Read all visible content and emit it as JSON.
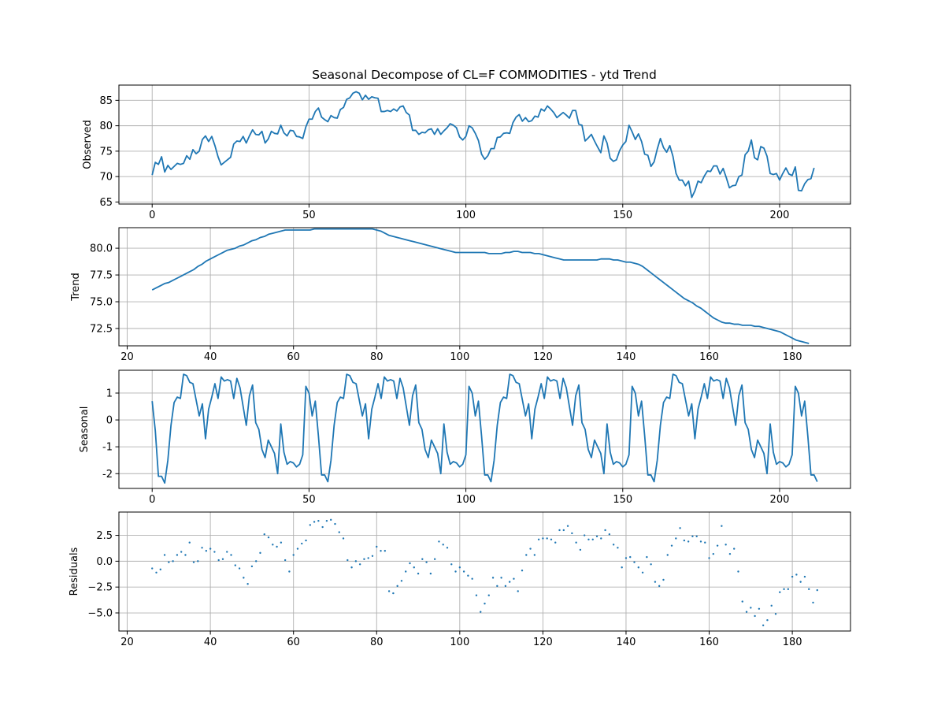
{
  "title": "Seasonal Decompose of CL=F COMMODITIES - ytd Trend",
  "colors": {
    "series": "#1f77b4",
    "grid": "#b0b0b0",
    "axes": "#000000",
    "background": "#ffffff"
  },
  "chart_data": [
    {
      "type": "line",
      "ylabel": "Observed",
      "grid": true,
      "xlim": [
        -10.6,
        222.6
      ],
      "ylim": [
        64.6,
        88.0
      ],
      "xticks": [
        0,
        50,
        100,
        150,
        200
      ],
      "yticks": [
        65,
        70,
        75,
        80,
        85
      ],
      "x_start": 0,
      "values": [
        70.3,
        72.8,
        72.4,
        73.9,
        70.9,
        72.2,
        71.4,
        72.0,
        72.6,
        72.4,
        72.6,
        74.1,
        73.4,
        75.3,
        74.5,
        75.0,
        77.3,
        78.0,
        76.9,
        77.9,
        76.1,
        73.9,
        72.3,
        72.8,
        73.3,
        73.8,
        76.4,
        77.0,
        76.9,
        77.9,
        76.6,
        78.0,
        79.2,
        78.3,
        78.2,
        78.9,
        76.6,
        77.4,
        78.9,
        78.5,
        78.4,
        80.1,
        78.6,
        78.0,
        79.1,
        79.0,
        77.9,
        77.8,
        77.5,
        79.8,
        81.3,
        81.3,
        82.8,
        83.5,
        81.7,
        81.2,
        80.8,
        82.0,
        81.6,
        81.5,
        83.2,
        83.6,
        85.2,
        85.5,
        86.4,
        86.7,
        86.4,
        85.1,
        86.0,
        85.2,
        85.7,
        85.5,
        85.4,
        82.8,
        82.8,
        83.0,
        82.8,
        83.3,
        82.9,
        83.7,
        83.9,
        82.6,
        82.1,
        79.1,
        79.1,
        78.3,
        78.7,
        78.6,
        79.2,
        79.4,
        78.3,
        79.4,
        78.3,
        79.0,
        79.6,
        80.4,
        80.1,
        79.6,
        77.8,
        77.2,
        77.9,
        80.0,
        79.6,
        78.5,
        77.1,
        74.4,
        73.4,
        74.1,
        75.5,
        75.5,
        77.7,
        77.8,
        78.5,
        78.6,
        78.5,
        80.6,
        81.7,
        82.2,
        80.9,
        81.6,
        80.8,
        81.0,
        81.9,
        81.7,
        83.3,
        82.9,
        83.9,
        83.3,
        82.6,
        81.6,
        82.1,
        82.6,
        82.1,
        81.5,
        83.0,
        83.0,
        80.3,
        80.1,
        77.0,
        77.6,
        78.3,
        77.0,
        75.8,
        74.7,
        78.0,
        76.6,
        73.6,
        73.0,
        73.3,
        75.1,
        76.2,
        76.9,
        80.1,
        78.8,
        77.3,
        78.4,
        76.9,
        74.4,
        74.2,
        72.0,
        72.9,
        75.4,
        77.5,
        75.7,
        74.8,
        76.1,
        74.0,
        70.6,
        69.3,
        69.3,
        68.2,
        69.1,
        65.9,
        67.2,
        69.1,
        68.8,
        70.1,
        71.1,
        71.0,
        72.1,
        72.1,
        70.5,
        71.6,
        69.8,
        67.8,
        68.2,
        68.3,
        70.0,
        70.3,
        74.3,
        75.0,
        77.2,
        73.7,
        73.3,
        75.9,
        75.6,
        74.0,
        70.6,
        70.4,
        70.6,
        69.3,
        70.6,
        71.7,
        70.5,
        70.2,
        71.9,
        67.3,
        67.2,
        68.6,
        69.4,
        69.6,
        71.7
      ]
    },
    {
      "type": "line",
      "ylabel": "Trend",
      "grid": true,
      "xlim": [
        18.0,
        194.0
      ],
      "ylim": [
        70.88,
        81.92
      ],
      "xticks": [
        20,
        40,
        60,
        80,
        100,
        120,
        140,
        160,
        180
      ],
      "yticks": [
        72.5,
        75.0,
        77.5,
        80.0
      ],
      "x_start": 26,
      "values": [
        76.1,
        76.3,
        76.5,
        76.7,
        76.8,
        77.0,
        77.2,
        77.4,
        77.6,
        77.8,
        78.0,
        78.3,
        78.5,
        78.8,
        79.0,
        79.2,
        79.4,
        79.6,
        79.8,
        79.9,
        80.0,
        80.2,
        80.3,
        80.5,
        80.7,
        80.8,
        81.0,
        81.1,
        81.3,
        81.4,
        81.5,
        81.6,
        81.7,
        81.7,
        81.7,
        81.7,
        81.7,
        81.7,
        81.7,
        81.8,
        81.8,
        81.8,
        81.8,
        81.8,
        81.8,
        81.8,
        81.8,
        81.8,
        81.8,
        81.8,
        81.8,
        81.8,
        81.8,
        81.8,
        81.7,
        81.6,
        81.4,
        81.2,
        81.1,
        81.0,
        80.9,
        80.8,
        80.7,
        80.6,
        80.5,
        80.4,
        80.3,
        80.2,
        80.1,
        80.0,
        79.9,
        79.8,
        79.7,
        79.6,
        79.6,
        79.6,
        79.6,
        79.6,
        79.6,
        79.6,
        79.6,
        79.5,
        79.5,
        79.5,
        79.5,
        79.6,
        79.6,
        79.7,
        79.7,
        79.6,
        79.6,
        79.6,
        79.5,
        79.5,
        79.4,
        79.3,
        79.2,
        79.1,
        79.0,
        78.9,
        78.9,
        78.9,
        78.9,
        78.9,
        78.9,
        78.9,
        78.9,
        78.9,
        79.0,
        79.0,
        79.0,
        78.9,
        78.9,
        78.8,
        78.7,
        78.7,
        78.6,
        78.5,
        78.3,
        78.0,
        77.7,
        77.4,
        77.1,
        76.8,
        76.5,
        76.2,
        75.9,
        75.6,
        75.3,
        75.1,
        74.9,
        74.6,
        74.4,
        74.1,
        73.8,
        73.5,
        73.3,
        73.1,
        73.0,
        73.0,
        72.9,
        72.9,
        72.8,
        72.8,
        72.8,
        72.7,
        72.7,
        72.6,
        72.5,
        72.4,
        72.3,
        72.2,
        72.0,
        71.8,
        71.6,
        71.4,
        71.3,
        71.2,
        71.1
      ]
    },
    {
      "type": "line",
      "ylabel": "Seasonal",
      "grid": true,
      "xlim": [
        -10.6,
        222.6
      ],
      "ylim": [
        -2.55,
        1.85
      ],
      "xticks": [
        0,
        50,
        100,
        150,
        200
      ],
      "yticks": [
        -2,
        -1,
        0,
        1
      ],
      "x_start": 0,
      "values": [
        0.7,
        -0.4,
        -2.1,
        -2.1,
        -2.35,
        -1.5,
        -0.2,
        0.65,
        0.85,
        0.8,
        1.7,
        1.65,
        1.4,
        1.35,
        0.75,
        0.15,
        0.6,
        -0.7,
        0.4,
        0.85,
        1.35,
        0.8,
        1.6,
        1.45,
        1.5,
        1.45,
        0.8,
        1.55,
        1.2,
        0.5,
        -0.2,
        0.9,
        1.3,
        -0.1,
        -0.35,
        -1.1,
        -1.4,
        -0.75,
        -1.0,
        -1.25,
        -2.0,
        -0.15,
        -1.2,
        -1.65,
        -1.55,
        -1.6,
        -1.75,
        -1.65,
        -1.3,
        1.25,
        1.0,
        0.15,
        0.7,
        -0.6,
        -2.05,
        -2.05,
        -2.3,
        -1.5,
        -0.2,
        0.65,
        0.85,
        0.8,
        1.7,
        1.65,
        1.4,
        1.35,
        0.75,
        0.15,
        0.6,
        -0.7,
        0.4,
        0.85,
        1.35,
        0.8,
        1.6,
        1.45,
        1.5,
        1.45,
        0.8,
        1.55,
        1.2,
        0.5,
        -0.2,
        0.9,
        1.3,
        -0.1,
        -0.35,
        -1.1,
        -1.4,
        -0.75,
        -1.0,
        -1.25,
        -2.0,
        -0.15,
        -1.2,
        -1.65,
        -1.55,
        -1.6,
        -1.75,
        -1.65,
        -1.3,
        1.25,
        1.0,
        0.15,
        0.7,
        -0.6,
        -2.05,
        -2.05,
        -2.3,
        -1.5,
        -0.2,
        0.65,
        0.85,
        0.8,
        1.7,
        1.65,
        1.4,
        1.35,
        0.75,
        0.15,
        0.6,
        -0.7,
        0.4,
        0.85,
        1.35,
        0.8,
        1.6,
        1.45,
        1.5,
        1.45,
        0.8,
        1.55,
        1.2,
        0.5,
        -0.2,
        0.9,
        1.3,
        -0.1,
        -0.35,
        -1.1,
        -1.4,
        -0.75,
        -1.0,
        -1.25,
        -2.0,
        -0.15,
        -1.2,
        -1.65,
        -1.55,
        -1.6,
        -1.75,
        -1.65,
        -1.3,
        1.25,
        1.0,
        0.15,
        0.7,
        -0.6,
        -2.05,
        -2.05,
        -2.3,
        -1.5,
        -0.2,
        0.65,
        0.85,
        0.8,
        1.7,
        1.65,
        1.4,
        1.35,
        0.75,
        0.15,
        0.6,
        -0.7,
        0.4,
        0.85,
        1.35,
        0.8,
        1.6,
        1.45,
        1.5,
        1.45,
        0.8,
        1.55,
        1.2,
        0.5,
        -0.2,
        0.9,
        1.3,
        -0.1,
        -0.35,
        -1.1,
        -1.4,
        -0.75,
        -1.0,
        -1.25,
        -2.0,
        -0.15,
        -1.2,
        -1.65,
        -1.55,
        -1.6,
        -1.75,
        -1.65,
        -1.3,
        1.25,
        1.0,
        0.15,
        0.7,
        -0.6,
        -2.05,
        -2.05,
        -2.3
      ]
    },
    {
      "type": "scatter",
      "ylabel": "Residuals",
      "grid": true,
      "xlim": [
        18.0,
        194.0
      ],
      "ylim": [
        -6.75,
        4.75
      ],
      "xticks": [
        20,
        40,
        60,
        80,
        100,
        120,
        140,
        160,
        180
      ],
      "yticks": [
        -5.0,
        -2.5,
        0.0,
        2.5
      ],
      "x_start": 26,
      "values": [
        -0.7,
        -1.1,
        -0.8,
        0.6,
        -0.1,
        0.0,
        0.6,
        0.9,
        0.6,
        1.8,
        -0.1,
        0.0,
        1.3,
        1.0,
        1.2,
        0.9,
        0.1,
        0.2,
        0.9,
        0.6,
        -0.4,
        -0.7,
        -1.6,
        -2.2,
        -0.5,
        0.0,
        0.8,
        2.6,
        2.3,
        1.6,
        1.4,
        1.8,
        0.1,
        -1.0,
        0.6,
        1.2,
        1.7,
        2.0,
        3.5,
        3.8,
        3.9,
        3.3,
        3.9,
        4.0,
        3.6,
        2.8,
        2.2,
        0.1,
        -0.6,
        0.0,
        -0.3,
        0.2,
        0.3,
        0.5,
        1.4,
        1.0,
        1.0,
        -2.9,
        -3.1,
        -2.4,
        -1.9,
        -1.0,
        -0.2,
        -0.6,
        -1.2,
        0.2,
        -0.1,
        -1.2,
        0.2,
        1.9,
        1.6,
        1.3,
        -0.3,
        -1.0,
        -0.6,
        -1.0,
        -1.4,
        -1.7,
        -3.3,
        -4.9,
        -4.1,
        -3.3,
        -1.6,
        -2.4,
        -1.6,
        -2.4,
        -2.0,
        -1.7,
        -2.9,
        -0.9,
        0.6,
        1.2,
        0.6,
        2.1,
        2.2,
        2.2,
        2.1,
        1.8,
        3.0,
        3.0,
        3.4,
        2.7,
        1.8,
        1.1,
        2.5,
        2.1,
        2.1,
        2.4,
        2.2,
        3.0,
        2.6,
        1.6,
        1.3,
        -0.6,
        0.3,
        0.4,
        -0.1,
        -0.6,
        -1.1,
        0.4,
        -0.3,
        -2.0,
        -2.4,
        -1.8,
        0.6,
        1.5,
        2.2,
        3.2,
        2.0,
        1.9,
        2.4,
        2.4,
        1.9,
        1.8,
        0.3,
        0.7,
        1.5,
        3.4,
        1.6,
        0.7,
        1.2,
        -1.0,
        -3.9,
        -4.9,
        -4.5,
        -5.3,
        -4.6,
        -6.2,
        -5.7,
        -4.3,
        -5.1,
        -3.0,
        -2.7,
        -2.7,
        -1.5,
        -1.3,
        -2.0,
        -1.5,
        -2.7,
        -4.0,
        -2.8
      ]
    }
  ]
}
